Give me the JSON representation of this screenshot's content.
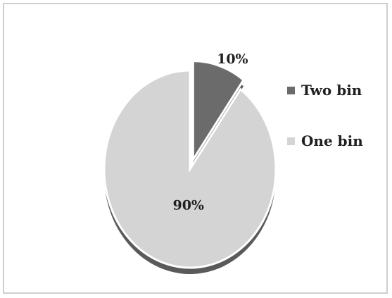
{
  "chart_data": {
    "type": "pie",
    "title": "",
    "slices": [
      {
        "name": "Two bin",
        "value": 10,
        "label": "10%",
        "color": "#6b6b6b"
      },
      {
        "name": "One bin",
        "value": 90,
        "label": "90%",
        "color": "#d4d4d4"
      }
    ],
    "start_angle_deg": 0,
    "exploded_slice": "Two bin",
    "legend_position": "right",
    "colors": {
      "shadow": "#5a5a5a",
      "frame": "#cfcfcf"
    }
  }
}
